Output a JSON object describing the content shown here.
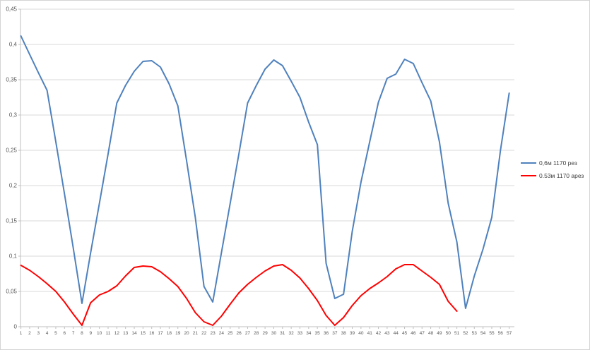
{
  "chart_data": {
    "type": "line",
    "title": "",
    "xlabel": "",
    "ylabel": "",
    "legend_position": "right",
    "grid": "horizontal",
    "x_categories": [
      1,
      2,
      3,
      4,
      5,
      6,
      7,
      8,
      9,
      10,
      11,
      12,
      13,
      14,
      15,
      16,
      17,
      18,
      19,
      20,
      21,
      22,
      23,
      24,
      25,
      26,
      27,
      28,
      29,
      30,
      31,
      32,
      33,
      34,
      35,
      36,
      37,
      38,
      39,
      40,
      41,
      42,
      43,
      44,
      45,
      46,
      47,
      48,
      49,
      50,
      51,
      52,
      53,
      54,
      55,
      56,
      57
    ],
    "y_axis": {
      "min": 0,
      "max": 0.45,
      "step": 0.05,
      "tick_labels": [
        "0",
        "0,05",
        "0,1",
        "0,15",
        "0,2",
        "0,25",
        "0,3",
        "0,35",
        "0,4",
        "0,45"
      ]
    },
    "series": [
      {
        "name": "0,6м 1170 рез",
        "color": "#4F81BD",
        "values": [
          0.412,
          0.386,
          0.36,
          0.335,
          0.262,
          0.188,
          0.112,
          0.033,
          0.105,
          0.175,
          0.245,
          0.317,
          0.342,
          0.362,
          0.376,
          0.377,
          0.368,
          0.344,
          0.313,
          0.235,
          0.155,
          0.057,
          0.035,
          0.105,
          0.175,
          0.245,
          0.317,
          0.342,
          0.365,
          0.378,
          0.37,
          0.348,
          0.325,
          0.29,
          0.258,
          0.09,
          0.04,
          0.046,
          0.135,
          0.205,
          0.262,
          0.318,
          0.352,
          0.358,
          0.379,
          0.373,
          0.346,
          0.32,
          0.262,
          0.175,
          0.12,
          0.026,
          0.072,
          0.11,
          0.155,
          0.25,
          0.331
        ]
      },
      {
        "name": "0.53м 1170 арез",
        "color": "#FF0000",
        "values": [
          0.087,
          0.08,
          0.071,
          0.061,
          0.05,
          0.035,
          0.018,
          0.002,
          0.034,
          0.045,
          0.05,
          0.058,
          0.072,
          0.084,
          0.086,
          0.085,
          0.078,
          0.068,
          0.057,
          0.04,
          0.02,
          0.007,
          0.002,
          0.015,
          0.032,
          0.048,
          0.06,
          0.07,
          0.079,
          0.086,
          0.088,
          0.08,
          0.069,
          0.054,
          0.037,
          0.016,
          0.002,
          0.013,
          0.03,
          0.044,
          0.054,
          0.062,
          0.071,
          0.082,
          0.088,
          0.088,
          0.079,
          0.07,
          0.06,
          0.036,
          0.022
        ]
      }
    ]
  },
  "colors": {
    "gridline": "#d9d9d9",
    "axis": "#bfbfbf",
    "tick_label": "#595959",
    "series_blue": "#4F81BD",
    "series_red": "#FF0000"
  }
}
